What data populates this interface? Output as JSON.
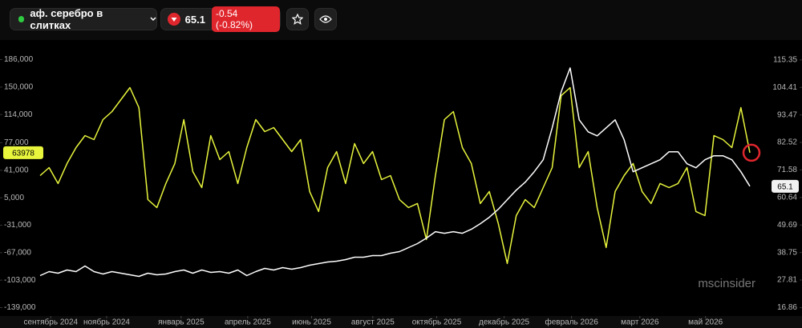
{
  "header": {
    "title": "аф. серебро в слитках",
    "price": "65.1",
    "change": "-0.54 (-0.82%)"
  },
  "chart_data": {
    "type": "line",
    "xlim": [
      0,
      80
    ],
    "xticks": [
      {
        "value": 1.2,
        "label": "сентябрь 2024"
      },
      {
        "value": 7.5,
        "label": "ноябрь 2024"
      },
      {
        "value": 15.9,
        "label": "январь 2025"
      },
      {
        "value": 23.4,
        "label": "апрель 2025"
      },
      {
        "value": 30.6,
        "label": "июнь 2025"
      },
      {
        "value": 37.5,
        "label": "август 2025"
      },
      {
        "value": 44.7,
        "label": "октябрь 2025"
      },
      {
        "value": 52.3,
        "label": "декабрь 2025"
      },
      {
        "value": 59.9,
        "label": "февраль 2026"
      },
      {
        "value": 67.6,
        "label": "март 2026"
      },
      {
        "value": 75.0,
        "label": "май 2026"
      }
    ],
    "ylim": [
      -150000,
      196000
    ],
    "yticks": [
      {
        "value": 186000,
        "label": "186,000"
      },
      {
        "value": 150000,
        "label": "150,000"
      },
      {
        "value": 114000,
        "label": "114,000"
      },
      {
        "value": 77000,
        "label": "77,000"
      },
      {
        "value": 41000,
        "label": "41,000"
      },
      {
        "value": 5000,
        "label": "5,000"
      },
      {
        "value": -31000,
        "label": "-31,000"
      },
      {
        "value": -67000,
        "label": "-67,000"
      },
      {
        "value": -103000,
        "label": "-103,000"
      },
      {
        "value": -139000,
        "label": "-139,000"
      }
    ],
    "y2lim": [
      13.5,
      118.5
    ],
    "y2ticks": [
      115.35,
      104.41,
      93.47,
      82.52,
      71.58,
      60.64,
      49.69,
      38.75,
      27.81,
      16.86
    ],
    "series": [
      {
        "color": "#e8f53c",
        "axis": "y",
        "values": [
          34000,
          44500,
          23600,
          49800,
          70700,
          86400,
          81200,
          107400,
          117900,
          133600,
          149300,
          123100,
          2600,
          -7900,
          23600,
          49800,
          107400,
          39300,
          18300,
          86400,
          55000,
          65500,
          23600,
          70700,
          107400,
          91700,
          96900,
          81200,
          65500,
          81200,
          13100,
          -13100,
          44500,
          65500,
          23600,
          76000,
          49800,
          65500,
          28800,
          34000,
          2600,
          -7900,
          -2600,
          -49800,
          34000,
          107400,
          117900,
          70700,
          49800,
          -2600,
          13100,
          -28800,
          -81200,
          -18400,
          2600,
          -7900,
          18300,
          44500,
          138800,
          149300,
          44500,
          65500,
          -7900,
          -60300,
          13100,
          34000,
          49800,
          13100,
          -2600,
          23600,
          18300,
          23600,
          44500,
          -13100,
          -18400,
          86400,
          81200,
          70700,
          123100,
          63978
        ]
      },
      {
        "color": "#ffffff",
        "axis": "y2",
        "values": [
          29.57,
          31.16,
          30.52,
          31.79,
          31.16,
          33.38,
          31.16,
          30.21,
          31.16,
          30.52,
          29.89,
          29.25,
          30.52,
          29.89,
          30.21,
          31.16,
          31.79,
          30.52,
          31.79,
          30.84,
          31.16,
          30.52,
          31.79,
          29.57,
          31.16,
          32.43,
          31.79,
          32.75,
          32.11,
          32.75,
          33.7,
          34.34,
          34.97,
          35.29,
          35.92,
          36.88,
          36.88,
          37.51,
          37.51,
          38.47,
          39.1,
          40.69,
          42.28,
          44.5,
          47.04,
          46.41,
          47.04,
          46.41,
          48.0,
          50.22,
          52.76,
          55.94,
          59.75,
          63.56,
          66.74,
          70.87,
          75.64,
          88.35,
          102.64,
          112.17,
          91.52,
          86.76,
          85.17,
          88.35,
          91.52,
          83.58,
          70.87,
          72.46,
          74.05,
          75.64,
          78.81,
          78.81,
          74.05,
          72.46,
          75.64,
          77.23,
          77.23,
          75.64,
          70.87,
          65.1
        ]
      }
    ],
    "markers": [
      {
        "axis": "y",
        "value": 63978
      },
      {
        "axis": "y2",
        "value": 65.1
      }
    ],
    "watermark": "mscinsider"
  }
}
